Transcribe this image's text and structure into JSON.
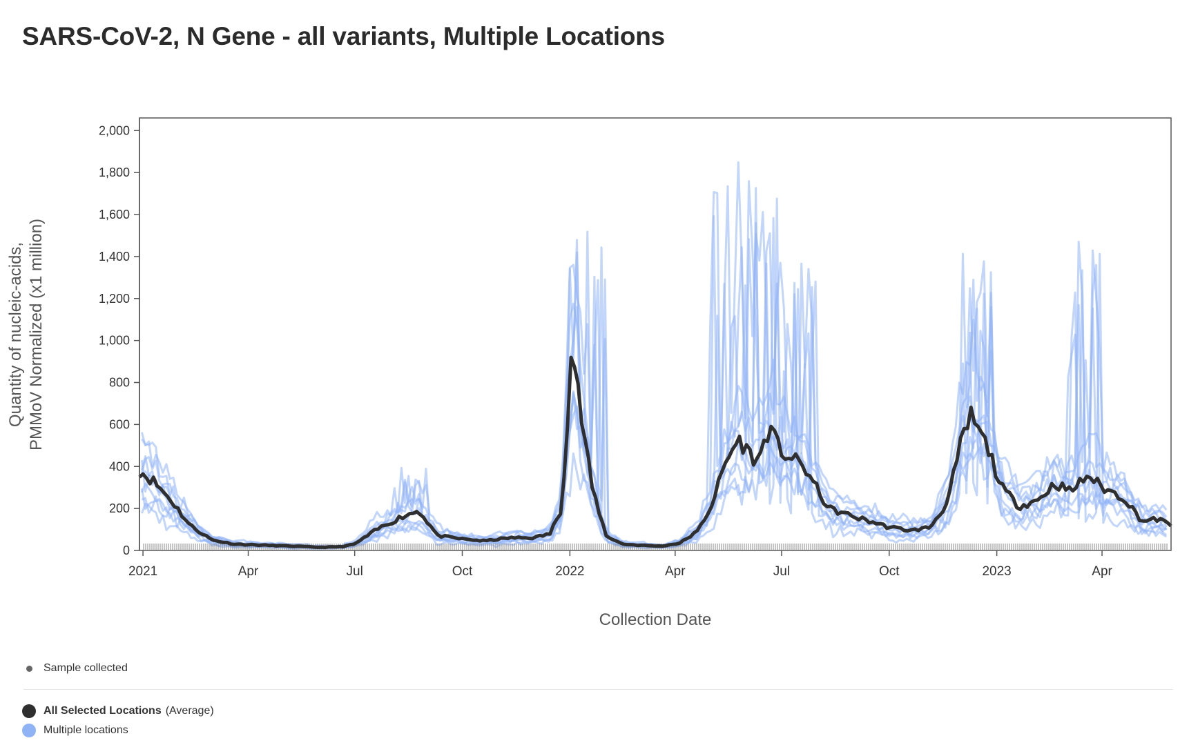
{
  "title": "SARS-CoV-2, N Gene - all variants, Multiple Locations",
  "legend": {
    "sample_label": "Sample collected",
    "avg_label": "All Selected Locations",
    "avg_suffix": "(Average)",
    "multi_label": "Multiple locations"
  },
  "colors": {
    "average": "#2f2f2f",
    "locations": "#8fb3f5",
    "sample_marks": "#888888",
    "axis": "#555555"
  },
  "chart_data": {
    "type": "line",
    "title": "SARS-CoV-2, N Gene - all variants, Multiple Locations",
    "xlabel": "Collection Date",
    "ylabel": [
      "Quantity of nucleic-acids,",
      "PMMoV Normalized (x1 million)"
    ],
    "xlim": [
      "2020-12-29",
      "2023-05-30"
    ],
    "ylim": [
      0,
      2060
    ],
    "y_ticks": [
      0,
      200,
      400,
      600,
      800,
      1000,
      1200,
      1400,
      1600,
      1800,
      2000
    ],
    "y_tick_labels": [
      "0",
      "200",
      "400",
      "600",
      "800",
      "1,000",
      "1,200",
      "1,400",
      "1,600",
      "1,800",
      "2,000"
    ],
    "x_ticks": [
      {
        "date": "2021-01-01",
        "label": "2021"
      },
      {
        "date": "2021-04-01",
        "label": "Apr"
      },
      {
        "date": "2021-07-01",
        "label": "Jul"
      },
      {
        "date": "2021-10-01",
        "label": "Oct"
      },
      {
        "date": "2022-01-01",
        "label": "2022"
      },
      {
        "date": "2022-04-01",
        "label": "Apr"
      },
      {
        "date": "2022-07-01",
        "label": "Jul"
      },
      {
        "date": "2022-10-01",
        "label": "Oct"
      },
      {
        "date": "2023-01-01",
        "label": "2023"
      },
      {
        "date": "2023-04-01",
        "label": "Apr"
      }
    ],
    "grid": false,
    "legend_position": "bottom-left",
    "series": [
      {
        "name": "All Selected Locations (Average)",
        "x": [
          "2020-12-29",
          "2021-01-10",
          "2021-01-25",
          "2021-02-10",
          "2021-03-01",
          "2021-03-20",
          "2021-04-15",
          "2021-05-10",
          "2021-06-01",
          "2021-06-20",
          "2021-07-01",
          "2021-07-20",
          "2021-08-10",
          "2021-08-25",
          "2021-09-10",
          "2021-10-01",
          "2021-10-20",
          "2021-11-10",
          "2021-12-01",
          "2021-12-15",
          "2021-12-25",
          "2022-01-03",
          "2022-01-10",
          "2022-01-20",
          "2022-02-01",
          "2022-02-15",
          "2022-03-01",
          "2022-03-20",
          "2022-04-05",
          "2022-04-20",
          "2022-05-01",
          "2022-05-15",
          "2022-05-25",
          "2022-06-10",
          "2022-06-20",
          "2022-07-01",
          "2022-07-20",
          "2022-08-10",
          "2022-09-01",
          "2022-09-20",
          "2022-10-01",
          "2022-10-20",
          "2022-11-05",
          "2022-11-20",
          "2022-12-01",
          "2022-12-10",
          "2022-12-25",
          "2023-01-05",
          "2023-01-20",
          "2023-02-05",
          "2023-02-20",
          "2023-03-05",
          "2023-03-20",
          "2023-04-01",
          "2023-04-20",
          "2023-05-05",
          "2023-05-20",
          "2023-05-30"
        ],
        "y": [
          380,
          330,
          240,
          120,
          50,
          30,
          25,
          20,
          15,
          18,
          30,
          100,
          160,
          190,
          70,
          55,
          45,
          60,
          60,
          80,
          200,
          1000,
          660,
          300,
          70,
          30,
          25,
          20,
          35,
          90,
          200,
          430,
          530,
          420,
          580,
          470,
          400,
          200,
          160,
          130,
          110,
          95,
          110,
          230,
          500,
          640,
          480,
          300,
          210,
          240,
          320,
          280,
          360,
          300,
          250,
          140,
          150,
          115
        ]
      }
    ],
    "location_series_count": 10,
    "location_peaks": {
      "2021-08": 400,
      "2022-01": 1570,
      "2022-05": 1880,
      "2022-06": 1780,
      "2022-07": 1390,
      "2022-12": 1430,
      "2023-03": 1480
    }
  }
}
